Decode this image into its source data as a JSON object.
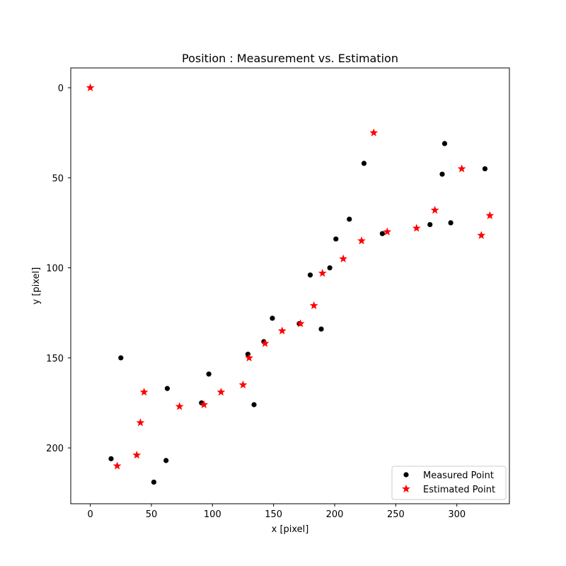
{
  "chart_data": {
    "type": "scatter",
    "title": "Position : Measurement vs. Estimation",
    "xlabel": "x [pixel]",
    "ylabel": "y [pixel]",
    "xlim": [
      -16,
      343
    ],
    "ylim": [
      231,
      -11
    ],
    "y_inverted": true,
    "grid": false,
    "legend_position": "lower-right",
    "x_ticks": [
      0,
      50,
      100,
      150,
      200,
      250,
      300
    ],
    "y_ticks": [
      0,
      50,
      100,
      150,
      200
    ],
    "series": [
      {
        "name": "Measured Point",
        "marker": "circle",
        "color": "#000000",
        "points": [
          [
            17,
            206
          ],
          [
            25,
            150
          ],
          [
            52,
            219
          ],
          [
            62,
            207
          ],
          [
            63,
            167
          ],
          [
            91,
            175
          ],
          [
            97,
            159
          ],
          [
            129,
            148
          ],
          [
            134,
            176
          ],
          [
            142,
            141
          ],
          [
            149,
            128
          ],
          [
            171,
            131
          ],
          [
            180,
            104
          ],
          [
            189,
            134
          ],
          [
            196,
            100
          ],
          [
            201,
            84
          ],
          [
            212,
            73
          ],
          [
            224,
            42
          ],
          [
            239,
            81
          ],
          [
            278,
            76
          ],
          [
            288,
            48
          ],
          [
            290,
            31
          ],
          [
            295,
            75
          ],
          [
            323,
            45
          ]
        ]
      },
      {
        "name": "Estimated Point",
        "marker": "star",
        "color": "#ff0000",
        "points": [
          [
            0,
            0
          ],
          [
            22,
            210
          ],
          [
            38,
            204
          ],
          [
            41,
            186
          ],
          [
            44,
            169
          ],
          [
            73,
            177
          ],
          [
            93,
            176
          ],
          [
            107,
            169
          ],
          [
            125,
            165
          ],
          [
            130,
            150
          ],
          [
            143,
            142
          ],
          [
            157,
            135
          ],
          [
            172,
            131
          ],
          [
            183,
            121
          ],
          [
            190,
            103
          ],
          [
            207,
            95
          ],
          [
            222,
            85
          ],
          [
            232,
            25
          ],
          [
            243,
            80
          ],
          [
            267,
            78
          ],
          [
            282,
            68
          ],
          [
            304,
            45
          ],
          [
            320,
            82
          ],
          [
            327,
            71
          ]
        ]
      }
    ]
  }
}
